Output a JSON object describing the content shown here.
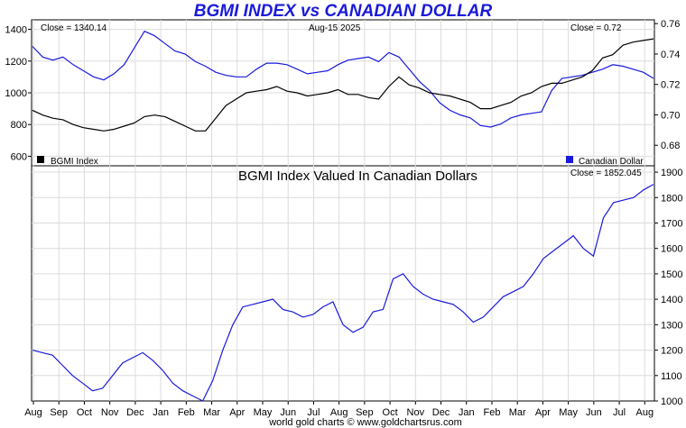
{
  "title": "BGMI INDEX vs CANADIAN DOLLAR",
  "top": {
    "close_left": "Close = 1340.14",
    "date": "Aug-15  2025",
    "close_right": "Close = 0.72",
    "legend_left": "BGMI Index",
    "legend_right": "Canadian Dollar"
  },
  "bottom": {
    "subtitle": "BGMI Index Valued In Canadian Dollars",
    "close": "Close = 1852.045"
  },
  "footer": "world gold charts © www.goldchartsrus.com",
  "colors": {
    "bgmi": "#000000",
    "cad": "#1a1adb",
    "grid": "#dcdcdc",
    "title": "#1a1adb"
  },
  "chart_data": [
    {
      "type": "line",
      "title": "BGMI INDEX vs CANADIAN DOLLAR",
      "x_ticks": [
        "Aug",
        "Sep",
        "Oct",
        "Nov",
        "Dec",
        "Jan",
        "Feb",
        "Mar",
        "Apr",
        "May",
        "Jun",
        "Jul",
        "Aug",
        "Sep",
        "Oct",
        "Nov",
        "Dec",
        "Jan",
        "Feb",
        "Mar",
        "Apr",
        "May",
        "Jun",
        "Jul",
        "Aug"
      ],
      "y_left_ticks": [
        600,
        800,
        1000,
        1200,
        1400
      ],
      "y_left_range": [
        540,
        1460
      ],
      "y_right_ticks": [
        0.68,
        0.7,
        0.72,
        0.74,
        0.76
      ],
      "y_right_range": [
        0.6665,
        0.7625
      ],
      "series": [
        {
          "name": "BGMI Index",
          "axis": "left",
          "color": "#000000",
          "values": [
            890,
            860,
            840,
            830,
            800,
            780,
            770,
            760,
            770,
            790,
            810,
            850,
            860,
            850,
            820,
            790,
            760,
            760,
            840,
            920,
            960,
            1000,
            1010,
            1020,
            1040,
            1010,
            1000,
            980,
            990,
            1000,
            1020,
            990,
            990,
            970,
            960,
            1040,
            1100,
            1050,
            1030,
            1000,
            990,
            980,
            960,
            940,
            900,
            900,
            920,
            940,
            980,
            1000,
            1040,
            1060,
            1060,
            1080,
            1100,
            1140,
            1220,
            1240,
            1300,
            1320,
            1330,
            1340
          ]
        },
        {
          "name": "Canadian Dollar",
          "axis": "right",
          "color": "#1a1adb",
          "values": [
            0.745,
            0.738,
            0.736,
            0.738,
            0.733,
            0.729,
            0.725,
            0.723,
            0.727,
            0.733,
            0.744,
            0.755,
            0.752,
            0.747,
            0.742,
            0.74,
            0.735,
            0.732,
            0.728,
            0.726,
            0.725,
            0.725,
            0.73,
            0.734,
            0.734,
            0.733,
            0.73,
            0.727,
            0.728,
            0.729,
            0.733,
            0.736,
            0.737,
            0.738,
            0.735,
            0.741,
            0.738,
            0.73,
            0.722,
            0.716,
            0.708,
            0.703,
            0.7,
            0.698,
            0.693,
            0.692,
            0.694,
            0.698,
            0.7,
            0.701,
            0.702,
            0.716,
            0.724,
            0.725,
            0.726,
            0.728,
            0.73,
            0.733,
            0.732,
            0.73,
            0.728,
            0.724
          ]
        }
      ]
    },
    {
      "type": "line",
      "title": "BGMI Index Valued In Canadian Dollars",
      "x_ticks": [
        "Aug",
        "Sep",
        "Oct",
        "Nov",
        "Dec",
        "Jan",
        "Feb",
        "Mar",
        "Apr",
        "May",
        "Jun",
        "Jul",
        "Aug",
        "Sep",
        "Oct",
        "Nov",
        "Dec",
        "Jan",
        "Feb",
        "Mar",
        "Apr",
        "May",
        "Jun",
        "Jul",
        "Aug"
      ],
      "y_ticks": [
        1000,
        1100,
        1200,
        1300,
        1400,
        1500,
        1600,
        1700,
        1800,
        1900
      ],
      "y_range": [
        1000,
        1925
      ],
      "series": [
        {
          "name": "BGMI Index Valued In Canadian Dollars",
          "color": "#1a1adb",
          "values": [
            1200,
            1190,
            1180,
            1140,
            1100,
            1070,
            1040,
            1050,
            1100,
            1150,
            1170,
            1190,
            1160,
            1120,
            1070,
            1040,
            1020,
            1000,
            1080,
            1200,
            1300,
            1370,
            1380,
            1390,
            1400,
            1360,
            1350,
            1330,
            1340,
            1370,
            1390,
            1300,
            1270,
            1290,
            1350,
            1360,
            1480,
            1500,
            1450,
            1420,
            1400,
            1390,
            1380,
            1350,
            1310,
            1330,
            1370,
            1410,
            1430,
            1450,
            1500,
            1560,
            1590,
            1620,
            1650,
            1600,
            1570,
            1720,
            1780,
            1790,
            1800,
            1830,
            1852
          ]
        }
      ]
    }
  ]
}
